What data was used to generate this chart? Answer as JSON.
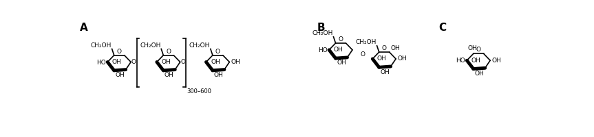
{
  "bg_color": "#ffffff",
  "label_A": "A",
  "label_B": "B",
  "label_C": "C",
  "label_fontsize": 11,
  "fs": 6.5,
  "bracket_text": "300–600",
  "lw": 1.2,
  "lw_bold": 3.5
}
